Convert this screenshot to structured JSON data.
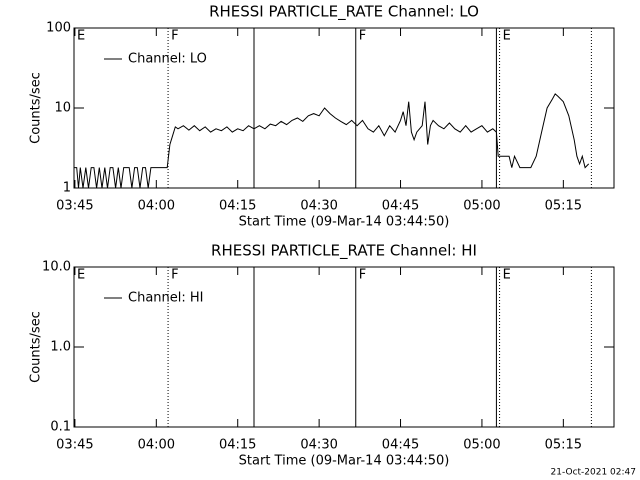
{
  "chart_data": [
    {
      "type": "line",
      "title": "RHESSI PARTICLE_RATE Channel: LO",
      "ylabel": "Counts/sec",
      "xlabel": "Start Time (09-Mar-14 03:44:50)",
      "log_y": true,
      "legend": "upper left",
      "xlim": [
        "03:44:50",
        "05:24:20"
      ],
      "xticks": [
        "03:45",
        "04:00",
        "04:15",
        "04:30",
        "04:45",
        "05:00",
        "05:15"
      ],
      "ylim": [
        1,
        100
      ],
      "yticks": [
        1,
        10,
        100
      ],
      "vlines": [
        {
          "x": "04:02:10",
          "style": "dotted"
        },
        {
          "x": "04:18:00",
          "style": "solid"
        },
        {
          "x": "04:36:45",
          "style": "solid"
        },
        {
          "x": "05:02:40",
          "style": "solid"
        },
        {
          "x": "05:03:15",
          "style": "dotted"
        },
        {
          "x": "05:20:10",
          "style": "dotted"
        }
      ],
      "annotations": [
        {
          "x": "03:44:50",
          "text": "E"
        },
        {
          "x": "04:02:10",
          "text": "F"
        },
        {
          "x": "04:36:45",
          "text": "F"
        },
        {
          "x": "05:03:15",
          "text": "E"
        }
      ],
      "series": [
        {
          "name": "Channel: LO",
          "color": "#000000",
          "x": [
            "03:44:50",
            "03:45:20",
            "03:45:40",
            "03:46:00",
            "03:46:30",
            "03:47:00",
            "03:47:30",
            "03:48:00",
            "03:48:30",
            "03:49:00",
            "03:49:30",
            "03:50:00",
            "03:50:30",
            "03:51:00",
            "03:51:30",
            "03:52:00",
            "03:52:30",
            "03:53:00",
            "03:53:30",
            "03:54:00",
            "03:55:00",
            "03:55:30",
            "03:56:00",
            "03:56:30",
            "03:57:00",
            "03:57:30",
            "03:58:00",
            "03:58:30",
            "03:59:00",
            "04:00:00",
            "04:01:00",
            "04:02:00",
            "04:02:30",
            "04:03:00",
            "04:03:30",
            "04:04:00",
            "04:05:00",
            "04:06:00",
            "04:07:00",
            "04:08:00",
            "04:09:00",
            "04:10:00",
            "04:11:00",
            "04:12:00",
            "04:13:00",
            "04:14:00",
            "04:15:00",
            "04:16:00",
            "04:17:00",
            "04:18:00",
            "04:19:00",
            "04:20:00",
            "04:21:00",
            "04:22:00",
            "04:23:00",
            "04:24:00",
            "04:25:00",
            "04:26:00",
            "04:27:00",
            "04:28:00",
            "04:29:00",
            "04:30:00",
            "04:31:00",
            "04:32:00",
            "04:33:00",
            "04:34:00",
            "04:35:00",
            "04:36:00",
            "04:37:00",
            "04:38:00",
            "04:39:00",
            "04:40:00",
            "04:41:00",
            "04:42:00",
            "04:43:00",
            "04:44:00",
            "04:45:00",
            "04:45:30",
            "04:46:00",
            "04:46:30",
            "04:47:00",
            "04:47:30",
            "04:48:00",
            "04:49:00",
            "04:49:30",
            "04:50:00",
            "04:50:30",
            "04:51:00",
            "04:52:00",
            "04:53:00",
            "04:54:00",
            "04:55:00",
            "04:56:00",
            "04:57:00",
            "04:58:00",
            "04:59:00",
            "05:00:00",
            "05:01:00",
            "05:02:00",
            "05:02:40",
            "05:03:00",
            "05:04:00",
            "05:05:00",
            "05:05:30",
            "05:06:00",
            "05:07:00",
            "05:08:00",
            "05:09:00",
            "05:10:00",
            "05:11:00",
            "05:12:00",
            "05:13:00",
            "05:13:30",
            "05:14:00",
            "05:15:00",
            "05:16:00",
            "05:17:00",
            "05:17:30",
            "05:18:00",
            "05:18:30",
            "05:19:00",
            "05:19:40"
          ],
          "values": [
            1.8,
            1.8,
            1,
            1.8,
            1,
            1.8,
            1,
            1.8,
            1.8,
            1,
            1.8,
            1,
            1.8,
            1,
            1.8,
            1.8,
            1,
            1.8,
            1,
            1.8,
            1.8,
            1,
            1.8,
            1.8,
            1,
            1.8,
            1.8,
            1,
            1.8,
            1.8,
            1.8,
            1.8,
            3.5,
            4.5,
            5.8,
            5.5,
            6,
            5.3,
            6,
            5.2,
            5.8,
            5,
            5.5,
            5.2,
            5.8,
            5,
            5.5,
            5.2,
            6,
            5.5,
            6,
            5.5,
            6.3,
            6,
            6.8,
            6.2,
            7,
            7.5,
            6.8,
            8,
            8.5,
            8,
            10,
            8.5,
            7.5,
            6.8,
            6.2,
            7,
            6,
            7,
            5.5,
            5,
            6,
            4.5,
            6,
            5,
            7,
            9,
            6,
            12,
            5,
            4,
            5,
            6,
            12,
            3.5,
            6,
            7,
            6,
            5.5,
            6.5,
            5.5,
            5,
            6,
            5,
            5.5,
            6,
            5,
            5.5,
            5,
            2.5,
            2.5,
            2.5,
            1.8,
            2.5,
            1.8,
            1.8,
            1.8,
            2.5,
            5,
            10,
            13,
            15,
            14,
            12,
            8,
            4,
            2.5,
            2,
            2.5,
            1.8,
            2
          ]
        }
      ]
    },
    {
      "type": "line",
      "title": "RHESSI PARTICLE_RATE Channel: HI",
      "ylabel": "Counts/sec",
      "xlabel": "Start Time (09-Mar-14 03:44:50)",
      "log_y": true,
      "legend": "upper left",
      "xlim": [
        "03:44:50",
        "05:24:20"
      ],
      "xticks": [
        "03:45",
        "04:00",
        "04:15",
        "04:30",
        "04:45",
        "05:00",
        "05:15"
      ],
      "ylim": [
        0.1,
        10
      ],
      "yticks": [
        {
          "value": 0.1,
          "label": "0.1"
        },
        {
          "value": 1,
          "label": "1.0"
        },
        {
          "value": 10,
          "label": "10.0"
        }
      ],
      "vlines": [
        {
          "x": "04:02:10",
          "style": "dotted"
        },
        {
          "x": "04:18:00",
          "style": "solid"
        },
        {
          "x": "04:36:45",
          "style": "solid"
        },
        {
          "x": "05:02:40",
          "style": "solid"
        },
        {
          "x": "05:03:15",
          "style": "dotted"
        },
        {
          "x": "05:20:10",
          "style": "dotted"
        }
      ],
      "annotations": [
        {
          "x": "03:44:50",
          "text": "E"
        },
        {
          "x": "04:02:10",
          "text": "F"
        },
        {
          "x": "04:36:45",
          "text": "F"
        },
        {
          "x": "05:03:15",
          "text": "E"
        }
      ],
      "series": [
        {
          "name": "Channel: HI",
          "color": "#000000",
          "x": [],
          "values": []
        }
      ]
    }
  ],
  "footer": "21-Oct-2021 02:47"
}
